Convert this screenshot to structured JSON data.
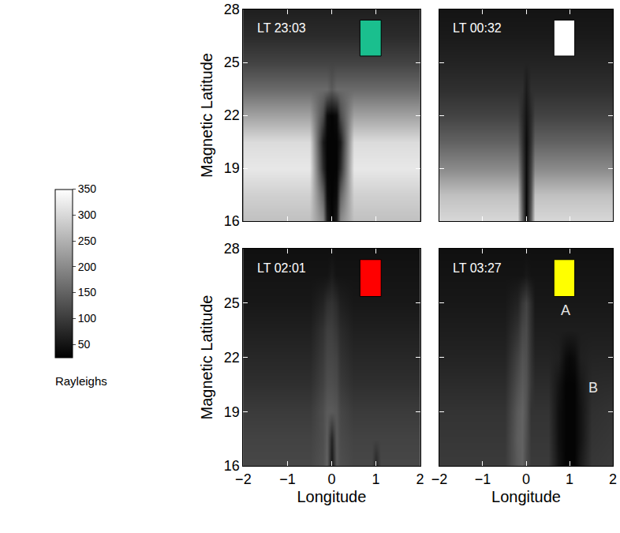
{
  "chart_data": [
    {
      "type": "heatmap",
      "title": "LT 23:03",
      "color": "#1abf8e",
      "ylabel": "Magnetic Latitude",
      "tick_labels": "y",
      "x": [
        -2,
        -1.5,
        -1,
        -0.5,
        -0.2,
        -0.1,
        0,
        0.1,
        0.2,
        0.5,
        0.75,
        0.9,
        1,
        1.1,
        1.25,
        1.5,
        2
      ],
      "y": [
        16,
        17.5,
        19,
        20.5,
        22,
        23.5,
        25,
        26.5,
        28
      ],
      "z": [
        [
          270,
          270,
          270,
          270,
          200,
          60,
          30,
          60,
          200,
          270,
          270,
          270,
          270,
          270,
          270,
          270,
          270
        ],
        [
          290,
          290,
          290,
          290,
          150,
          40,
          30,
          40,
          150,
          290,
          290,
          290,
          290,
          290,
          290,
          290,
          290
        ],
        [
          320,
          320,
          320,
          320,
          80,
          30,
          30,
          30,
          80,
          320,
          320,
          320,
          320,
          320,
          320,
          320,
          320
        ],
        [
          305,
          305,
          305,
          305,
          60,
          30,
          30,
          30,
          60,
          305,
          305,
          305,
          305,
          305,
          305,
          305,
          305
        ],
        [
          230,
          230,
          230,
          230,
          120,
          40,
          30,
          40,
          120,
          230,
          230,
          230,
          230,
          230,
          230,
          230,
          230
        ],
        [
          160,
          160,
          160,
          160,
          160,
          160,
          140,
          160,
          160,
          160,
          160,
          160,
          160,
          160,
          160,
          160,
          160
        ],
        [
          110,
          110,
          110,
          110,
          110,
          110,
          110,
          110,
          110,
          110,
          110,
          110,
          110,
          110,
          110,
          110,
          110
        ],
        [
          80,
          80,
          80,
          80,
          80,
          80,
          80,
          80,
          80,
          80,
          80,
          80,
          80,
          80,
          80,
          80,
          80
        ],
        [
          65,
          65,
          65,
          65,
          65,
          65,
          65,
          65,
          65,
          65,
          65,
          65,
          65,
          65,
          65,
          65,
          65
        ]
      ],
      "xlim": [
        -2,
        2
      ],
      "ylim": [
        16,
        28
      ],
      "xticks": [
        -2,
        -1,
        0,
        1,
        2
      ],
      "yticks": [
        16,
        19,
        22,
        25,
        28
      ],
      "colorbar": {
        "range": [
          25,
          350
        ],
        "ticks": [
          50,
          100,
          150,
          200,
          250,
          300,
          350
        ],
        "title": "Rayleighs"
      }
    },
    {
      "type": "heatmap",
      "title": "LT 00:32",
      "color": "#ffffff",
      "tick_labels": false,
      "x": [
        -2,
        -1.5,
        -1,
        -0.5,
        -0.2,
        -0.1,
        0,
        0.1,
        0.2,
        0.5,
        0.75,
        0.9,
        1,
        1.1,
        1.25,
        1.5,
        2
      ],
      "y": [
        16,
        17.5,
        19,
        20.5,
        22,
        23.5,
        25,
        26.5,
        28
      ],
      "z": [
        [
          300,
          300,
          300,
          300,
          300,
          150,
          30,
          150,
          300,
          300,
          300,
          300,
          300,
          300,
          300,
          300,
          300
        ],
        [
          270,
          270,
          270,
          270,
          270,
          130,
          35,
          130,
          270,
          270,
          270,
          270,
          270,
          270,
          270,
          270,
          270
        ],
        [
          200,
          200,
          200,
          200,
          200,
          110,
          40,
          110,
          200,
          200,
          200,
          200,
          200,
          200,
          200,
          200,
          200
        ],
        [
          150,
          150,
          150,
          150,
          150,
          90,
          40,
          90,
          150,
          150,
          150,
          150,
          150,
          150,
          150,
          150,
          150
        ],
        [
          110,
          110,
          110,
          110,
          110,
          80,
          50,
          80,
          110,
          110,
          110,
          110,
          110,
          110,
          110,
          110,
          110
        ],
        [
          85,
          85,
          85,
          85,
          85,
          85,
          60,
          85,
          85,
          85,
          85,
          85,
          85,
          85,
          85,
          85,
          85
        ],
        [
          70,
          70,
          70,
          70,
          70,
          70,
          70,
          70,
          70,
          70,
          70,
          70,
          70,
          70,
          70,
          70,
          70
        ],
        [
          58,
          58,
          58,
          58,
          58,
          58,
          58,
          58,
          58,
          58,
          58,
          58,
          58,
          58,
          58,
          58,
          58
        ],
        [
          50,
          50,
          50,
          50,
          50,
          50,
          50,
          50,
          50,
          50,
          50,
          50,
          50,
          50,
          50,
          50,
          50
        ]
      ],
      "xlim": [
        -2,
        2
      ],
      "ylim": [
        16,
        28
      ],
      "xticks": [
        -2,
        -1,
        0,
        1,
        2
      ],
      "yticks": [
        16,
        19,
        22,
        25,
        28
      ]
    },
    {
      "type": "heatmap",
      "title": "LT 02:01",
      "color": "#ff0000",
      "xlabel": "Longitude",
      "ylabel": "Magnetic Latitude",
      "tick_labels": true,
      "x": [
        -2,
        -1.5,
        -1,
        -0.5,
        -0.2,
        -0.1,
        0,
        0.1,
        0.2,
        0.5,
        0.75,
        0.9,
        1,
        1.1,
        1.25,
        1.5,
        2
      ],
      "y": [
        16,
        17.5,
        19,
        20.5,
        22,
        23.5,
        25,
        26.5,
        28
      ],
      "z": [
        [
          115,
          115,
          115,
          115,
          130,
          150,
          50,
          140,
          125,
          115,
          115,
          115,
          70,
          115,
          115,
          115,
          115
        ],
        [
          110,
          110,
          110,
          110,
          125,
          145,
          70,
          140,
          120,
          110,
          110,
          110,
          110,
          110,
          110,
          110,
          110
        ],
        [
          100,
          100,
          100,
          100,
          125,
          140,
          140,
          135,
          115,
          100,
          100,
          100,
          100,
          100,
          100,
          100,
          100
        ],
        [
          85,
          85,
          85,
          85,
          110,
          125,
          125,
          120,
          100,
          85,
          85,
          85,
          85,
          85,
          85,
          85,
          85
        ],
        [
          75,
          75,
          75,
          75,
          100,
          115,
          115,
          110,
          90,
          75,
          75,
          75,
          75,
          75,
          75,
          75,
          75
        ],
        [
          65,
          65,
          65,
          65,
          90,
          105,
          105,
          95,
          80,
          65,
          65,
          65,
          65,
          65,
          65,
          65,
          65
        ],
        [
          55,
          55,
          55,
          55,
          70,
          85,
          90,
          80,
          65,
          55,
          55,
          55,
          55,
          55,
          55,
          55,
          55
        ],
        [
          50,
          50,
          50,
          50,
          50,
          50,
          60,
          50,
          50,
          50,
          50,
          50,
          50,
          50,
          50,
          50,
          50
        ],
        [
          45,
          45,
          45,
          45,
          45,
          45,
          45,
          45,
          45,
          45,
          45,
          45,
          45,
          45,
          45,
          45,
          45
        ]
      ],
      "xlim": [
        -2,
        2
      ],
      "ylim": [
        16,
        28
      ],
      "xticks": [
        -2,
        -1,
        0,
        1,
        2
      ],
      "yticks": [
        16,
        19,
        22,
        25,
        28
      ]
    },
    {
      "type": "heatmap",
      "title": "LT 03:27",
      "color": "#ffff00",
      "xlabel": "Longitude",
      "tick_labels": "x",
      "x": [
        -2,
        -1.5,
        -1,
        -0.5,
        -0.2,
        -0.1,
        0,
        0.1,
        0.2,
        0.5,
        0.75,
        0.9,
        1,
        1.1,
        1.25,
        1.5,
        2
      ],
      "y": [
        16,
        17.5,
        19,
        20.5,
        22,
        23.5,
        25,
        26.5,
        28
      ],
      "z": [
        [
          100,
          100,
          100,
          100,
          140,
          150,
          120,
          100,
          100,
          100,
          50,
          30,
          30,
          30,
          60,
          95,
          100
        ],
        [
          95,
          95,
          95,
          95,
          145,
          150,
          125,
          95,
          95,
          95,
          45,
          30,
          30,
          30,
          50,
          90,
          95
        ],
        [
          90,
          90,
          90,
          90,
          140,
          150,
          130,
          90,
          90,
          90,
          45,
          30,
          30,
          30,
          50,
          85,
          90
        ],
        [
          80,
          80,
          80,
          80,
          125,
          140,
          130,
          95,
          80,
          80,
          50,
          30,
          30,
          30,
          55,
          78,
          80
        ],
        [
          70,
          70,
          70,
          70,
          110,
          130,
          125,
          90,
          70,
          70,
          65,
          40,
          35,
          40,
          65,
          70,
          70
        ],
        [
          62,
          62,
          62,
          62,
          90,
          115,
          120,
          85,
          62,
          62,
          62,
          62,
          62,
          62,
          62,
          62,
          62
        ],
        [
          55,
          55,
          55,
          55,
          70,
          95,
          110,
          80,
          55,
          55,
          55,
          55,
          55,
          55,
          55,
          55,
          55
        ],
        [
          50,
          50,
          50,
          50,
          50,
          50,
          55,
          50,
          50,
          50,
          50,
          50,
          50,
          50,
          50,
          50,
          50
        ],
        [
          45,
          45,
          45,
          45,
          45,
          45,
          45,
          45,
          45,
          45,
          45,
          45,
          45,
          45,
          45,
          45,
          45
        ]
      ],
      "xlim": [
        -2,
        2
      ],
      "ylim": [
        16,
        28
      ],
      "xticks": [
        -2,
        -1,
        0,
        1,
        2
      ],
      "yticks": [
        16,
        19,
        22,
        25,
        28
      ],
      "annotations": [
        {
          "text": "A",
          "x": 0.9,
          "y": 24.6
        },
        {
          "text": "B",
          "x": 1.55,
          "y": 20.3
        }
      ]
    }
  ]
}
